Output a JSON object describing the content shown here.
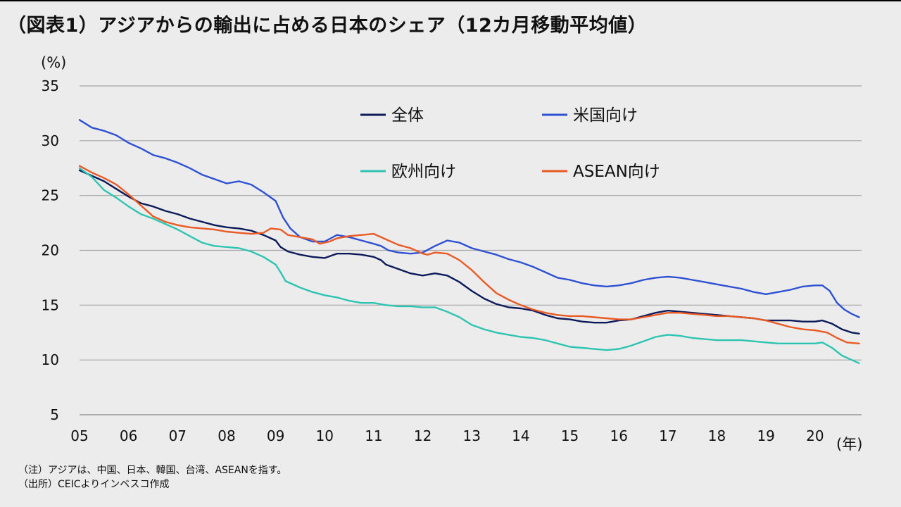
{
  "title": "（図表1）アジアからの輸出に占める日本のシェア（12カ月移動平均値）",
  "notes": [
    "（注）アジアは、中国、日本、韓国、台湾、ASEANを指す。",
    "（出所）CEICよりインベスコ作成"
  ],
  "chart_data": {
    "type": "line",
    "y_unit_label": "(%)",
    "x_unit_label": "(年)",
    "ylim": [
      5,
      35
    ],
    "yticks": [
      5,
      10,
      15,
      20,
      25,
      30,
      35
    ],
    "xlim": [
      2005,
      2020.95
    ],
    "xticks": [
      {
        "value": 2005,
        "label": "05"
      },
      {
        "value": 2006,
        "label": "06"
      },
      {
        "value": 2007,
        "label": "07"
      },
      {
        "value": 2008,
        "label": "08"
      },
      {
        "value": 2009,
        "label": "09"
      },
      {
        "value": 2010,
        "label": "10"
      },
      {
        "value": 2011,
        "label": "11"
      },
      {
        "value": 2012,
        "label": "12"
      },
      {
        "value": 2013,
        "label": "13"
      },
      {
        "value": 2014,
        "label": "14"
      },
      {
        "value": 2015,
        "label": "15"
      },
      {
        "value": 2016,
        "label": "16"
      },
      {
        "value": 2017,
        "label": "17"
      },
      {
        "value": 2018,
        "label": "18"
      },
      {
        "value": 2019,
        "label": "19"
      },
      {
        "value": 2020,
        "label": "20"
      }
    ],
    "grid": "horizontal",
    "legend_position": "top-right",
    "series": [
      {
        "name": "全体",
        "color": "#0c1a5a",
        "points": [
          [
            2005.0,
            27.3
          ],
          [
            2005.25,
            26.8
          ],
          [
            2005.5,
            26.3
          ],
          [
            2005.75,
            25.6
          ],
          [
            2006.0,
            24.9
          ],
          [
            2006.25,
            24.3
          ],
          [
            2006.5,
            24.0
          ],
          [
            2006.75,
            23.6
          ],
          [
            2007.0,
            23.3
          ],
          [
            2007.25,
            22.9
          ],
          [
            2007.5,
            22.6
          ],
          [
            2007.75,
            22.3
          ],
          [
            2008.0,
            22.1
          ],
          [
            2008.25,
            22.0
          ],
          [
            2008.5,
            21.8
          ],
          [
            2008.75,
            21.4
          ],
          [
            2009.0,
            20.9
          ],
          [
            2009.1,
            20.3
          ],
          [
            2009.25,
            19.9
          ],
          [
            2009.5,
            19.6
          ],
          [
            2009.75,
            19.4
          ],
          [
            2010.0,
            19.3
          ],
          [
            2010.25,
            19.7
          ],
          [
            2010.5,
            19.7
          ],
          [
            2010.75,
            19.6
          ],
          [
            2011.0,
            19.4
          ],
          [
            2011.15,
            19.1
          ],
          [
            2011.25,
            18.7
          ],
          [
            2011.5,
            18.3
          ],
          [
            2011.75,
            17.9
          ],
          [
            2012.0,
            17.7
          ],
          [
            2012.25,
            17.9
          ],
          [
            2012.5,
            17.7
          ],
          [
            2012.75,
            17.1
          ],
          [
            2013.0,
            16.3
          ],
          [
            2013.25,
            15.6
          ],
          [
            2013.5,
            15.1
          ],
          [
            2013.75,
            14.8
          ],
          [
            2014.0,
            14.7
          ],
          [
            2014.25,
            14.5
          ],
          [
            2014.5,
            14.1
          ],
          [
            2014.75,
            13.8
          ],
          [
            2015.0,
            13.7
          ],
          [
            2015.25,
            13.5
          ],
          [
            2015.5,
            13.4
          ],
          [
            2015.75,
            13.4
          ],
          [
            2016.0,
            13.6
          ],
          [
            2016.25,
            13.7
          ],
          [
            2016.5,
            14.0
          ],
          [
            2016.75,
            14.3
          ],
          [
            2017.0,
            14.5
          ],
          [
            2017.25,
            14.4
          ],
          [
            2017.5,
            14.3
          ],
          [
            2017.75,
            14.2
          ],
          [
            2018.0,
            14.1
          ],
          [
            2018.25,
            14.0
          ],
          [
            2018.5,
            13.9
          ],
          [
            2018.75,
            13.8
          ],
          [
            2019.0,
            13.6
          ],
          [
            2019.25,
            13.6
          ],
          [
            2019.5,
            13.6
          ],
          [
            2019.75,
            13.5
          ],
          [
            2020.0,
            13.5
          ],
          [
            2020.15,
            13.6
          ],
          [
            2020.35,
            13.3
          ],
          [
            2020.55,
            12.8
          ],
          [
            2020.75,
            12.5
          ],
          [
            2020.9,
            12.4
          ]
        ]
      },
      {
        "name": "米国向け",
        "color": "#2e51d3",
        "points": [
          [
            2005.0,
            31.9
          ],
          [
            2005.25,
            31.2
          ],
          [
            2005.5,
            30.9
          ],
          [
            2005.75,
            30.5
          ],
          [
            2006.0,
            29.8
          ],
          [
            2006.25,
            29.3
          ],
          [
            2006.5,
            28.7
          ],
          [
            2006.75,
            28.4
          ],
          [
            2007.0,
            28.0
          ],
          [
            2007.25,
            27.5
          ],
          [
            2007.5,
            26.9
          ],
          [
            2007.75,
            26.5
          ],
          [
            2008.0,
            26.1
          ],
          [
            2008.25,
            26.3
          ],
          [
            2008.5,
            26.0
          ],
          [
            2008.75,
            25.3
          ],
          [
            2009.0,
            24.5
          ],
          [
            2009.15,
            23.0
          ],
          [
            2009.3,
            22.0
          ],
          [
            2009.5,
            21.2
          ],
          [
            2009.75,
            20.8
          ],
          [
            2010.0,
            20.8
          ],
          [
            2010.25,
            21.4
          ],
          [
            2010.5,
            21.2
          ],
          [
            2010.75,
            20.9
          ],
          [
            2011.0,
            20.6
          ],
          [
            2011.15,
            20.4
          ],
          [
            2011.3,
            20.0
          ],
          [
            2011.5,
            19.8
          ],
          [
            2011.75,
            19.7
          ],
          [
            2012.0,
            19.8
          ],
          [
            2012.25,
            20.4
          ],
          [
            2012.5,
            20.9
          ],
          [
            2012.75,
            20.7
          ],
          [
            2013.0,
            20.2
          ],
          [
            2013.25,
            19.9
          ],
          [
            2013.5,
            19.6
          ],
          [
            2013.75,
            19.2
          ],
          [
            2014.0,
            18.9
          ],
          [
            2014.25,
            18.5
          ],
          [
            2014.5,
            18.0
          ],
          [
            2014.75,
            17.5
          ],
          [
            2015.0,
            17.3
          ],
          [
            2015.25,
            17.0
          ],
          [
            2015.5,
            16.8
          ],
          [
            2015.75,
            16.7
          ],
          [
            2016.0,
            16.8
          ],
          [
            2016.25,
            17.0
          ],
          [
            2016.5,
            17.3
          ],
          [
            2016.75,
            17.5
          ],
          [
            2017.0,
            17.6
          ],
          [
            2017.25,
            17.5
          ],
          [
            2017.5,
            17.3
          ],
          [
            2017.75,
            17.1
          ],
          [
            2018.0,
            16.9
          ],
          [
            2018.25,
            16.7
          ],
          [
            2018.5,
            16.5
          ],
          [
            2018.75,
            16.2
          ],
          [
            2019.0,
            16.0
          ],
          [
            2019.25,
            16.2
          ],
          [
            2019.5,
            16.4
          ],
          [
            2019.75,
            16.7
          ],
          [
            2020.0,
            16.8
          ],
          [
            2020.15,
            16.8
          ],
          [
            2020.3,
            16.3
          ],
          [
            2020.45,
            15.2
          ],
          [
            2020.6,
            14.6
          ],
          [
            2020.75,
            14.2
          ],
          [
            2020.9,
            13.9
          ]
        ]
      },
      {
        "name": "欧州向け",
        "color": "#2ec4b2",
        "points": [
          [
            2005.0,
            27.5
          ],
          [
            2005.25,
            26.7
          ],
          [
            2005.5,
            25.5
          ],
          [
            2005.75,
            24.8
          ],
          [
            2006.0,
            24.0
          ],
          [
            2006.25,
            23.3
          ],
          [
            2006.5,
            22.9
          ],
          [
            2006.75,
            22.4
          ],
          [
            2007.0,
            21.9
          ],
          [
            2007.25,
            21.3
          ],
          [
            2007.5,
            20.7
          ],
          [
            2007.75,
            20.4
          ],
          [
            2008.0,
            20.3
          ],
          [
            2008.25,
            20.2
          ],
          [
            2008.5,
            19.9
          ],
          [
            2008.75,
            19.4
          ],
          [
            2009.0,
            18.7
          ],
          [
            2009.1,
            18.0
          ],
          [
            2009.2,
            17.2
          ],
          [
            2009.5,
            16.6
          ],
          [
            2009.75,
            16.2
          ],
          [
            2010.0,
            15.9
          ],
          [
            2010.25,
            15.7
          ],
          [
            2010.5,
            15.4
          ],
          [
            2010.75,
            15.2
          ],
          [
            2011.0,
            15.2
          ],
          [
            2011.25,
            15.0
          ],
          [
            2011.5,
            14.9
          ],
          [
            2011.75,
            14.9
          ],
          [
            2012.0,
            14.8
          ],
          [
            2012.25,
            14.8
          ],
          [
            2012.5,
            14.4
          ],
          [
            2012.75,
            13.9
          ],
          [
            2013.0,
            13.2
          ],
          [
            2013.25,
            12.8
          ],
          [
            2013.5,
            12.5
          ],
          [
            2013.75,
            12.3
          ],
          [
            2014.0,
            12.1
          ],
          [
            2014.25,
            12.0
          ],
          [
            2014.5,
            11.8
          ],
          [
            2014.75,
            11.5
          ],
          [
            2015.0,
            11.2
          ],
          [
            2015.25,
            11.1
          ],
          [
            2015.5,
            11.0
          ],
          [
            2015.75,
            10.9
          ],
          [
            2016.0,
            11.0
          ],
          [
            2016.25,
            11.3
          ],
          [
            2016.5,
            11.7
          ],
          [
            2016.75,
            12.1
          ],
          [
            2017.0,
            12.3
          ],
          [
            2017.25,
            12.2
          ],
          [
            2017.5,
            12.0
          ],
          [
            2017.75,
            11.9
          ],
          [
            2018.0,
            11.8
          ],
          [
            2018.25,
            11.8
          ],
          [
            2018.5,
            11.8
          ],
          [
            2018.75,
            11.7
          ],
          [
            2019.0,
            11.6
          ],
          [
            2019.25,
            11.5
          ],
          [
            2019.5,
            11.5
          ],
          [
            2019.75,
            11.5
          ],
          [
            2020.0,
            11.5
          ],
          [
            2020.15,
            11.6
          ],
          [
            2020.35,
            11.1
          ],
          [
            2020.55,
            10.4
          ],
          [
            2020.75,
            10.0
          ],
          [
            2020.9,
            9.7
          ]
        ]
      },
      {
        "name": "ASEAN向け",
        "color": "#ea5a24",
        "points": [
          [
            2005.0,
            27.7
          ],
          [
            2005.25,
            27.1
          ],
          [
            2005.5,
            26.6
          ],
          [
            2005.75,
            26.0
          ],
          [
            2006.0,
            25.1
          ],
          [
            2006.25,
            24.1
          ],
          [
            2006.5,
            23.1
          ],
          [
            2006.75,
            22.6
          ],
          [
            2007.0,
            22.3
          ],
          [
            2007.25,
            22.1
          ],
          [
            2007.5,
            22.0
          ],
          [
            2007.75,
            21.9
          ],
          [
            2008.0,
            21.7
          ],
          [
            2008.25,
            21.6
          ],
          [
            2008.5,
            21.5
          ],
          [
            2008.75,
            21.6
          ],
          [
            2008.9,
            22.0
          ],
          [
            2009.1,
            21.9
          ],
          [
            2009.25,
            21.4
          ],
          [
            2009.5,
            21.2
          ],
          [
            2009.75,
            21.0
          ],
          [
            2009.9,
            20.6
          ],
          [
            2010.1,
            20.8
          ],
          [
            2010.25,
            21.1
          ],
          [
            2010.5,
            21.3
          ],
          [
            2010.75,
            21.4
          ],
          [
            2011.0,
            21.5
          ],
          [
            2011.25,
            21.0
          ],
          [
            2011.5,
            20.5
          ],
          [
            2011.75,
            20.2
          ],
          [
            2012.0,
            19.7
          ],
          [
            2012.1,
            19.6
          ],
          [
            2012.25,
            19.8
          ],
          [
            2012.5,
            19.7
          ],
          [
            2012.75,
            19.1
          ],
          [
            2013.0,
            18.2
          ],
          [
            2013.25,
            17.1
          ],
          [
            2013.5,
            16.1
          ],
          [
            2013.75,
            15.5
          ],
          [
            2014.0,
            15.0
          ],
          [
            2014.25,
            14.6
          ],
          [
            2014.5,
            14.3
          ],
          [
            2014.75,
            14.1
          ],
          [
            2015.0,
            14.0
          ],
          [
            2015.25,
            14.0
          ],
          [
            2015.5,
            13.9
          ],
          [
            2015.75,
            13.8
          ],
          [
            2016.0,
            13.7
          ],
          [
            2016.25,
            13.7
          ],
          [
            2016.5,
            13.9
          ],
          [
            2016.75,
            14.1
          ],
          [
            2017.0,
            14.3
          ],
          [
            2017.25,
            14.3
          ],
          [
            2017.5,
            14.2
          ],
          [
            2017.75,
            14.1
          ],
          [
            2018.0,
            14.0
          ],
          [
            2018.25,
            14.0
          ],
          [
            2018.5,
            13.9
          ],
          [
            2018.75,
            13.8
          ],
          [
            2019.0,
            13.6
          ],
          [
            2019.25,
            13.3
          ],
          [
            2019.5,
            13.0
          ],
          [
            2019.75,
            12.8
          ],
          [
            2020.0,
            12.7
          ],
          [
            2020.25,
            12.5
          ],
          [
            2020.45,
            12.0
          ],
          [
            2020.65,
            11.6
          ],
          [
            2020.9,
            11.5
          ]
        ]
      }
    ]
  }
}
